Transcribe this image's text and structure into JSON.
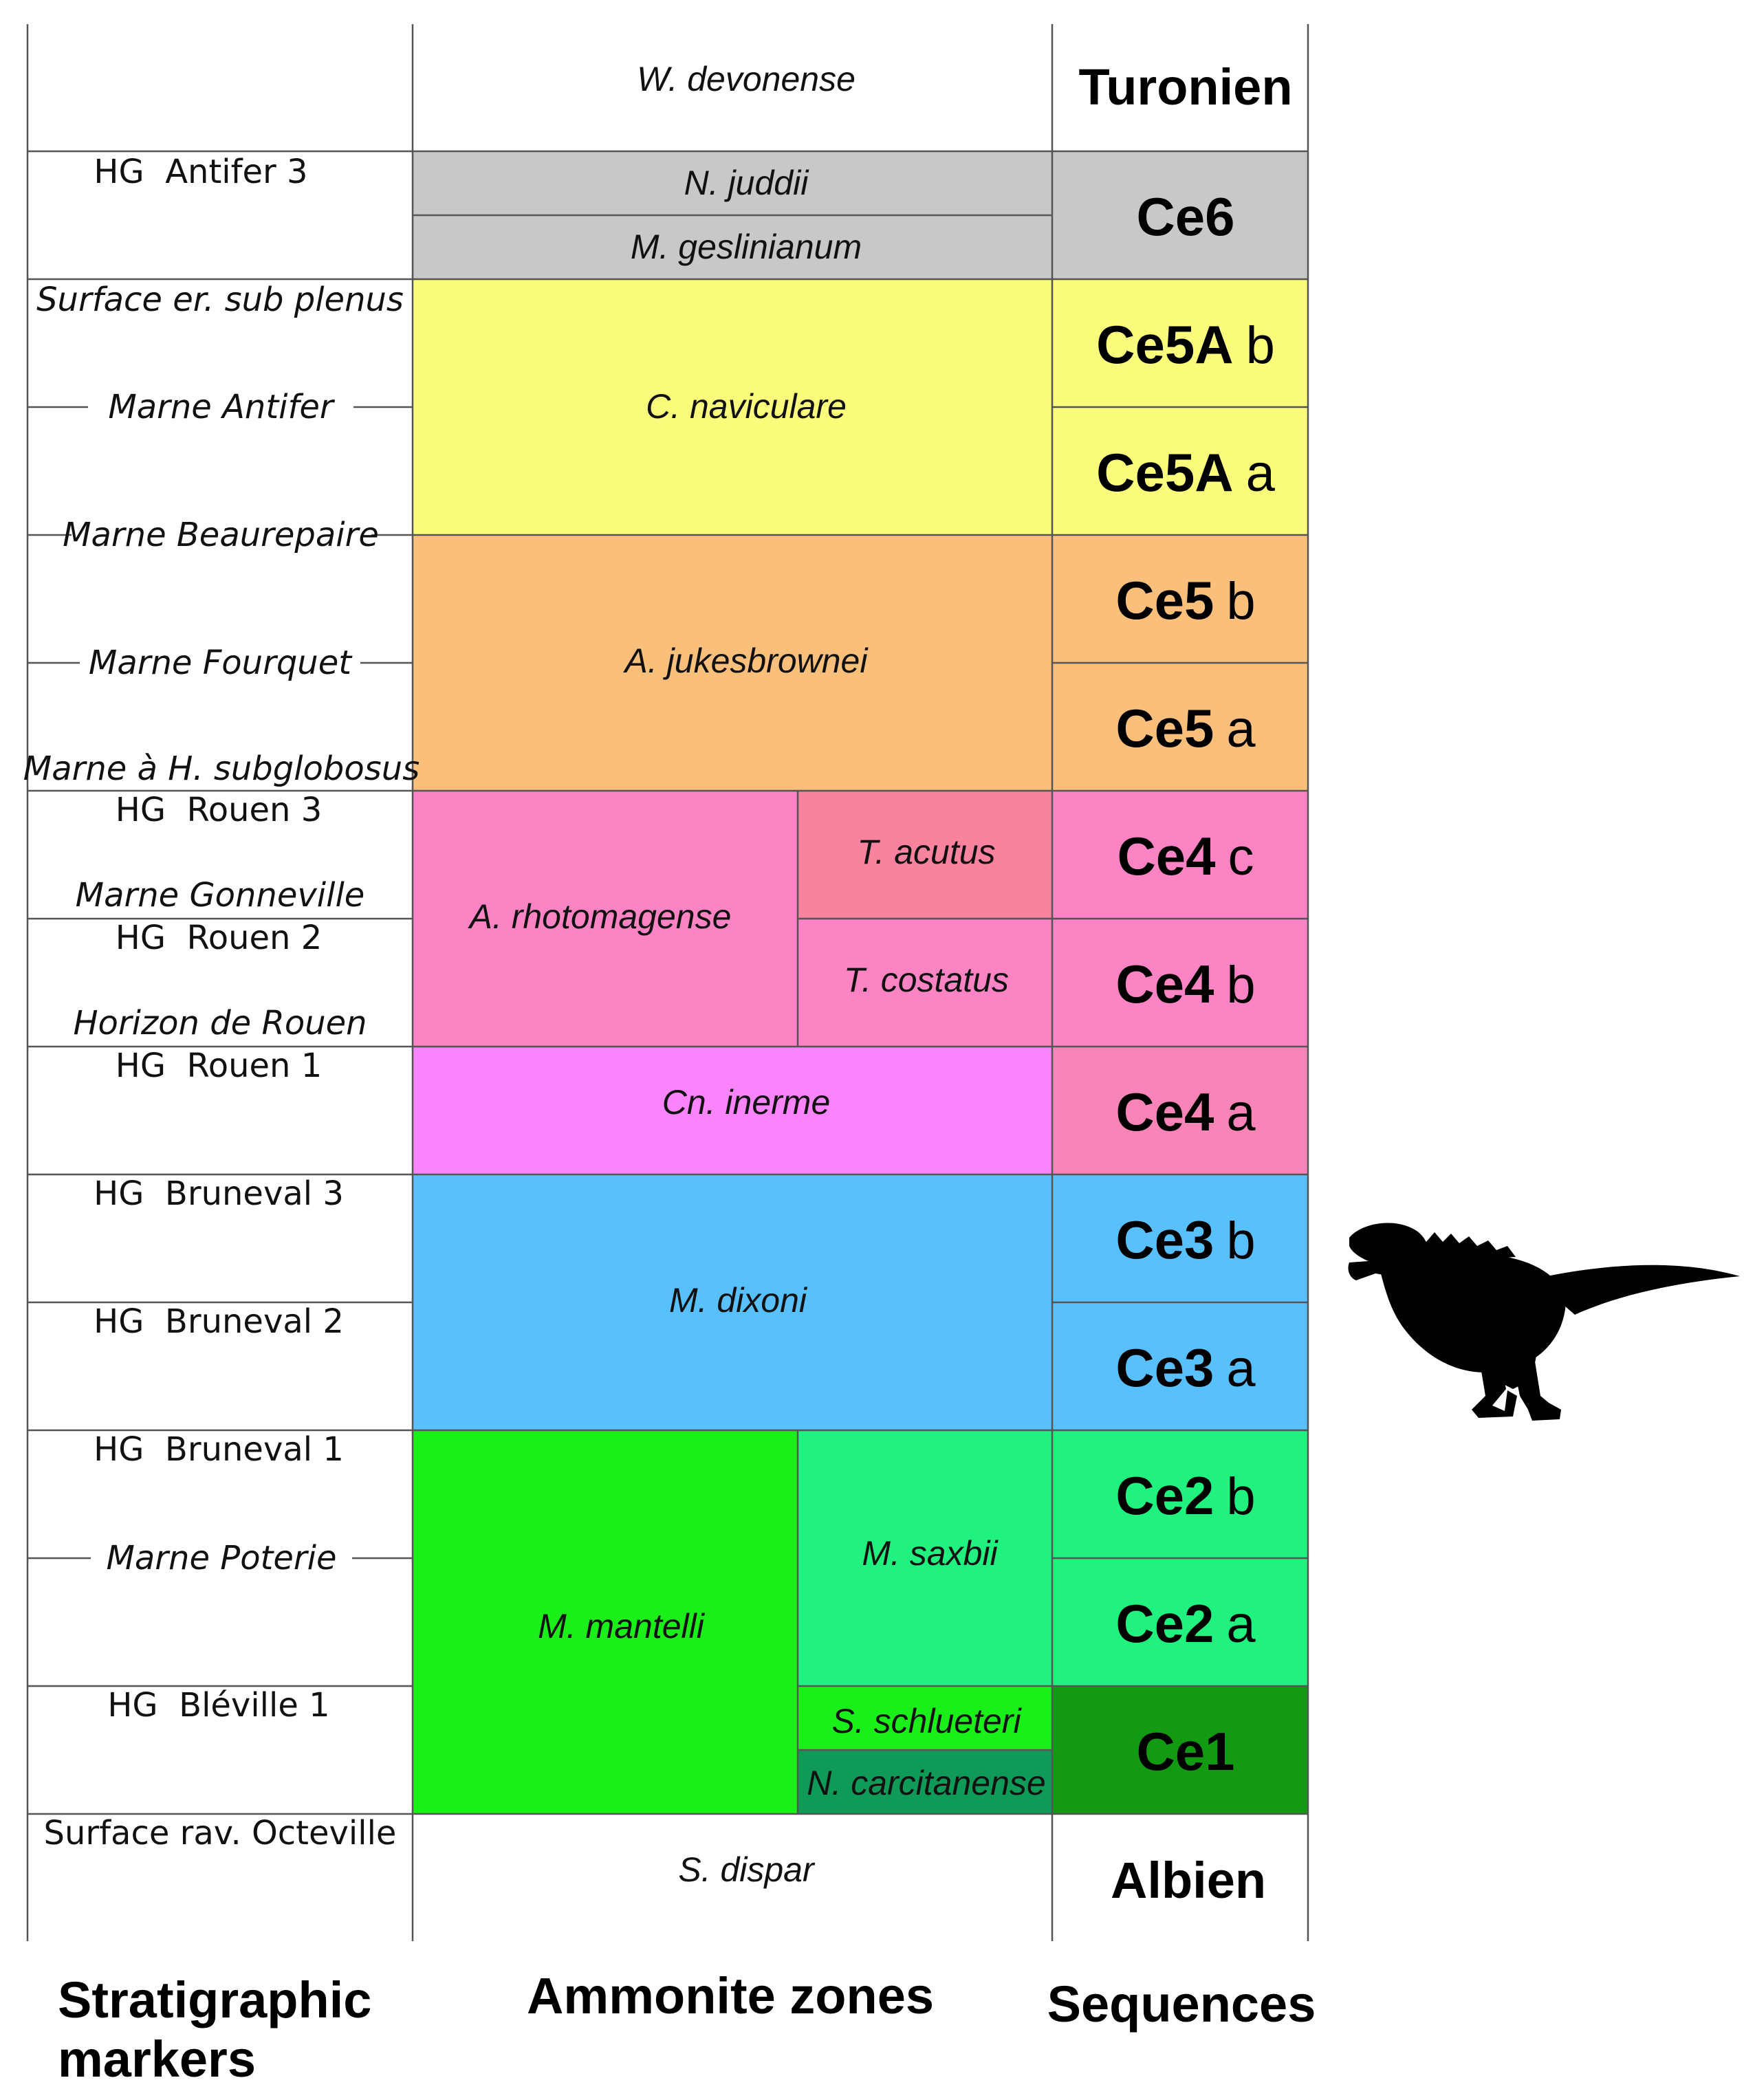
{
  "stratigraphic_markers": [
    {
      "id": "m1",
      "text": "HG  Antifer 3"
    },
    {
      "id": "m2",
      "text": "Surface er. sub plenus"
    },
    {
      "id": "m3",
      "text": "Marne Antifer"
    },
    {
      "id": "m4",
      "text": "Marne Beaurepaire"
    },
    {
      "id": "m5",
      "text": "Marne Fourquet"
    },
    {
      "id": "m6",
      "text": "Marne à H. subglobosus"
    },
    {
      "id": "m7",
      "text": "HG  Rouen 3"
    },
    {
      "id": "m8",
      "text": "Marne Gonneville"
    },
    {
      "id": "m9",
      "text": "HG  Rouen 2"
    },
    {
      "id": "m10",
      "text": "Horizon de Rouen"
    },
    {
      "id": "m11",
      "text": "HG  Rouen 1"
    },
    {
      "id": "m12",
      "text": "HG  Bruneval 3"
    },
    {
      "id": "m13",
      "text": "HG  Bruneval 2"
    },
    {
      "id": "m14",
      "text": "HG  Bruneval 1"
    },
    {
      "id": "m15",
      "text": "Marne Poterie"
    },
    {
      "id": "m16",
      "text": "HG  Bléville 1"
    },
    {
      "id": "m17",
      "text": "Surface rav. Octeville"
    }
  ],
  "ammonite_zones": [
    {
      "id": "z1",
      "name": "W. devonense",
      "color": "#ffffff"
    },
    {
      "id": "z2",
      "name": "N. juddii",
      "color": "#c8c8c8"
    },
    {
      "id": "z3",
      "name": "M. geslinianum",
      "color": "#c8c8c8"
    },
    {
      "id": "z4",
      "name": "C. naviculare",
      "color": "#fbfb7c"
    },
    {
      "id": "z5",
      "name": "A. jukesbrownei",
      "color": "#fbbf7c"
    },
    {
      "id": "z6",
      "name": "A. rhotomagense",
      "color": "#fc84c4"
    },
    {
      "id": "z7",
      "name": "T. acutus",
      "color": "#f9829f"
    },
    {
      "id": "z8",
      "name": "T. costatus",
      "color": "#fc84c4"
    },
    {
      "id": "z9",
      "name": "Cn. inerme",
      "color": "#f984fb"
    },
    {
      "id": "z10",
      "name": "M. dixoni",
      "color": "#58c0fc"
    },
    {
      "id": "z11",
      "name": "M. mantelli",
      "color": "#1aef1a"
    },
    {
      "id": "z12",
      "name": "M. saxbii",
      "color": "#21f27f"
    },
    {
      "id": "z13",
      "name": "S. schlueteri",
      "color": "#1aef1a"
    },
    {
      "id": "z14",
      "name": "N. carcitanense",
      "color": "#0f9b57"
    },
    {
      "id": "z15",
      "name": "S. dispar",
      "color": "#ffffff"
    }
  ],
  "sequences": [
    {
      "id": "s1",
      "main": "Turonien",
      "sub": "",
      "color": "#ffffff"
    },
    {
      "id": "s2",
      "main": "Ce6",
      "sub": "",
      "color": "#c8c8c8"
    },
    {
      "id": "s3",
      "main": "Ce5A",
      "sub": "b",
      "color": "#fbfb7c"
    },
    {
      "id": "s4",
      "main": "Ce5A",
      "sub": "a",
      "color": "#fbfb7c"
    },
    {
      "id": "s5",
      "main": "Ce5",
      "sub": "b",
      "color": "#fbbf7c"
    },
    {
      "id": "s6",
      "main": "Ce5",
      "sub": "a",
      "color": "#fbbf7c"
    },
    {
      "id": "s7",
      "main": "Ce4",
      "sub": "c",
      "color": "#fc84c4"
    },
    {
      "id": "s8",
      "main": "Ce4",
      "sub": "b",
      "color": "#fc84c4"
    },
    {
      "id": "s9",
      "main": "Ce4",
      "sub": "a",
      "color": "#f984b8"
    },
    {
      "id": "s10",
      "main": "Ce3",
      "sub": "b",
      "color": "#58c0fc"
    },
    {
      "id": "s11",
      "main": "Ce3",
      "sub": "a",
      "color": "#58c0fc"
    },
    {
      "id": "s12",
      "main": "Ce2",
      "sub": "b",
      "color": "#21f27f"
    },
    {
      "id": "s13",
      "main": "Ce2",
      "sub": "a",
      "color": "#21f27f"
    },
    {
      "id": "s14",
      "main": "Ce1",
      "sub": "",
      "color": "#129b12"
    },
    {
      "id": "s15",
      "main": "Albien",
      "sub": "",
      "color": "#ffffff"
    }
  ],
  "column_labels": {
    "markers_line1": "Stratigraphic",
    "markers_line2": "markers",
    "zones": "Ammonite zones",
    "sequences": "Sequences"
  },
  "icons": {
    "dinosaur": "dinosaur-silhouette-icon"
  }
}
